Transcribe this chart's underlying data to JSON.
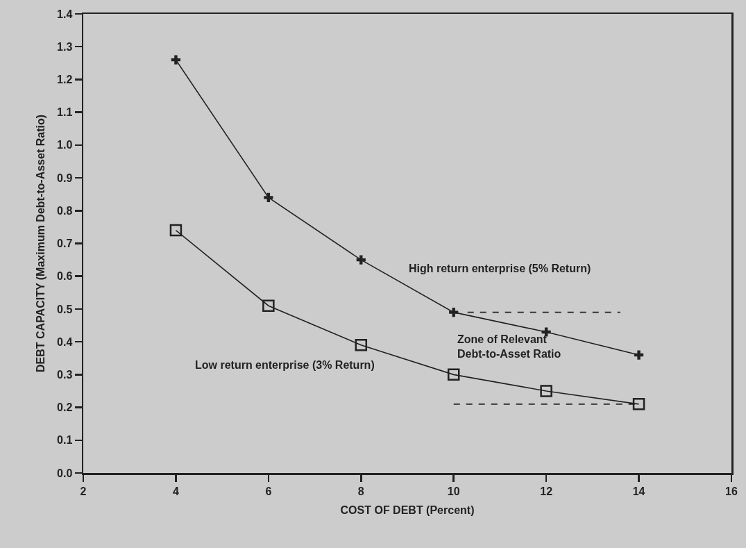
{
  "chart_data": {
    "type": "line",
    "xlabel": "COST OF DEBT (Percent)",
    "ylabel": "DEBT CAPACITY (Maximum Debt-to-Asset Ratio)",
    "x": [
      4,
      6,
      8,
      10,
      12,
      14
    ],
    "series": [
      {
        "color": "#222222",
        "marker": "cross",
        "values": [
          1.26,
          0.84,
          0.65,
          0.49,
          0.43,
          0.36
        ]
      },
      {
        "color": "#222222",
        "marker": "square",
        "values": [
          0.74,
          0.51,
          0.39,
          0.3,
          0.25,
          0.21
        ]
      },
      {
        "type": "line",
        "color": "#222222",
        "marker": "none",
        "line_style": "dashed",
        "x": [
          10.3,
          13.6
        ],
        "values": [
          0.49,
          0.49
        ]
      },
      {
        "type": "line",
        "color": "#222222",
        "marker": "none",
        "line_style": "dashed",
        "x": [
          10,
          14
        ],
        "values": [
          0.21,
          0.21
        ]
      }
    ],
    "annotations": [
      "High return enterprise (5% Return)",
      "Low return enterprise (3% Return)",
      "Zone of Relevant\nDebt-to-Asset Ratio"
    ],
    "xlim": [
      2,
      16
    ],
    "xticks": [
      2,
      4,
      6,
      8,
      10,
      12,
      14,
      16
    ],
    "ylim": [
      0,
      1.4
    ],
    "yticks": [
      {
        "value": 0,
        "label": "0.0"
      },
      0.1,
      0.2,
      0.3,
      0.4,
      0.5,
      0.6,
      0.7,
      0.8,
      0.9,
      {
        "value": 1,
        "label": "1.0"
      },
      1.1,
      1.2,
      1.3,
      1.4
    ]
  }
}
